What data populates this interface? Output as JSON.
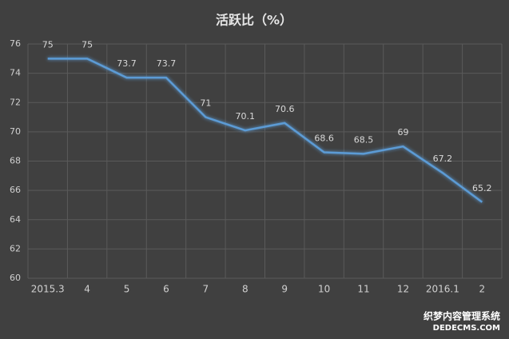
{
  "chart_data": {
    "type": "line",
    "title": "活跃比（%）",
    "categories": [
      "2015.3",
      "4",
      "5",
      "6",
      "7",
      "8",
      "9",
      "10",
      "11",
      "12",
      "2016.1",
      "2"
    ],
    "series": [
      {
        "name": "活跃比",
        "color": "#5b9bd5",
        "values": [
          75,
          75,
          73.7,
          73.7,
          71,
          70.1,
          70.6,
          68.6,
          68.5,
          69,
          67.2,
          65.2
        ]
      }
    ],
    "ylim": [
      60,
      76
    ],
    "yticks": [
      60,
      62,
      64,
      66,
      68,
      70,
      72,
      74,
      76
    ],
    "grid": true,
    "watermark": [
      "织梦内容管理系统",
      "DEDECMS.COM"
    ]
  }
}
